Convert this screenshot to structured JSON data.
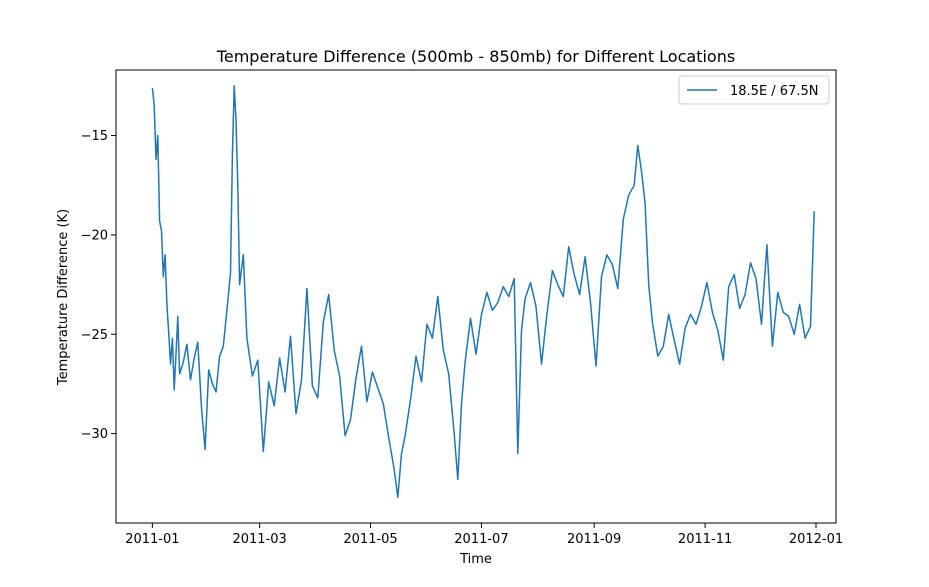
{
  "chart_data": {
    "type": "line",
    "title": "Temperature Difference (500mb - 850mb) for Different Locations",
    "xlabel": "Time",
    "ylabel": "Temperature Difference (K)",
    "xlim": [
      "2010-12-12",
      "2012-01-12"
    ],
    "ylim": [
      -34.5,
      -11.7
    ],
    "x_ticks": [
      "2011-01",
      "2011-03",
      "2011-05",
      "2011-07",
      "2011-09",
      "2011-11",
      "2012-01"
    ],
    "y_ticks": [
      -30,
      -25,
      -20,
      -15
    ],
    "y_tick_labels": [
      "−30",
      "−25",
      "−20",
      "−15"
    ],
    "grid": false,
    "legend_position": "top-right",
    "series": [
      {
        "name": "18.5E / 67.5N",
        "color": "#1f77b4",
        "x": [
          "2011-01-01",
          "2011-01-02",
          "2011-01-03",
          "2011-01-04",
          "2011-01-05",
          "2011-01-06",
          "2011-01-07",
          "2011-01-08",
          "2011-01-09",
          "2011-01-10",
          "2011-01-11",
          "2011-01-12",
          "2011-01-13",
          "2011-01-14",
          "2011-01-15",
          "2011-01-16",
          "2011-01-18",
          "2011-01-20",
          "2011-01-22",
          "2011-01-24",
          "2011-01-26",
          "2011-01-28",
          "2011-01-30",
          "2011-02-01",
          "2011-02-03",
          "2011-02-05",
          "2011-02-07",
          "2011-02-09",
          "2011-02-11",
          "2011-02-13",
          "2011-02-14",
          "2011-02-15",
          "2011-02-16",
          "2011-02-17",
          "2011-02-18",
          "2011-02-20",
          "2011-02-22",
          "2011-02-25",
          "2011-02-28",
          "2011-03-03",
          "2011-03-06",
          "2011-03-09",
          "2011-03-12",
          "2011-03-15",
          "2011-03-18",
          "2011-03-21",
          "2011-03-24",
          "2011-03-27",
          "2011-03-30",
          "2011-04-02",
          "2011-04-05",
          "2011-04-08",
          "2011-04-11",
          "2011-04-14",
          "2011-04-17",
          "2011-04-20",
          "2011-04-23",
          "2011-04-26",
          "2011-04-29",
          "2011-05-02",
          "2011-05-05",
          "2011-05-08",
          "2011-05-11",
          "2011-05-14",
          "2011-05-16",
          "2011-05-18",
          "2011-05-20",
          "2011-05-23",
          "2011-05-26",
          "2011-05-29",
          "2011-06-01",
          "2011-06-04",
          "2011-06-07",
          "2011-06-10",
          "2011-06-13",
          "2011-06-16",
          "2011-06-18",
          "2011-06-20",
          "2011-06-22",
          "2011-06-25",
          "2011-06-28",
          "2011-07-01",
          "2011-07-04",
          "2011-07-07",
          "2011-07-10",
          "2011-07-13",
          "2011-07-16",
          "2011-07-19",
          "2011-07-21",
          "2011-07-23",
          "2011-07-25",
          "2011-07-28",
          "2011-07-31",
          "2011-08-03",
          "2011-08-06",
          "2011-08-09",
          "2011-08-12",
          "2011-08-15",
          "2011-08-18",
          "2011-08-21",
          "2011-08-24",
          "2011-08-27",
          "2011-08-30",
          "2011-09-02",
          "2011-09-05",
          "2011-09-08",
          "2011-09-11",
          "2011-09-14",
          "2011-09-17",
          "2011-09-20",
          "2011-09-23",
          "2011-09-25",
          "2011-09-27",
          "2011-09-29",
          "2011-10-01",
          "2011-10-03",
          "2011-10-06",
          "2011-10-09",
          "2011-10-12",
          "2011-10-15",
          "2011-10-18",
          "2011-10-21",
          "2011-10-24",
          "2011-10-27",
          "2011-10-30",
          "2011-11-02",
          "2011-11-05",
          "2011-11-08",
          "2011-11-11",
          "2011-11-14",
          "2011-11-17",
          "2011-11-20",
          "2011-11-23",
          "2011-11-26",
          "2011-11-29",
          "2011-12-02",
          "2011-12-05",
          "2011-12-08",
          "2011-12-11",
          "2011-12-14",
          "2011-12-17",
          "2011-12-20",
          "2011-12-23",
          "2011-12-26",
          "2011-12-29",
          "2011-12-31"
        ],
        "values": [
          -12.6,
          -13.5,
          -16.2,
          -15.0,
          -19.3,
          -19.8,
          -22.1,
          -21.0,
          -23.5,
          -24.9,
          -26.5,
          -25.2,
          -27.8,
          -26.0,
          -24.1,
          -27.0,
          -26.4,
          -25.5,
          -27.3,
          -26.2,
          -25.4,
          -28.7,
          -30.8,
          -26.8,
          -27.5,
          -27.9,
          -26.1,
          -25.6,
          -23.8,
          -21.9,
          -16.0,
          -12.5,
          -14.2,
          -17.5,
          -22.5,
          -21.0,
          -25.2,
          -27.1,
          -26.3,
          -30.9,
          -27.4,
          -28.6,
          -26.2,
          -27.9,
          -25.1,
          -29.0,
          -27.3,
          -22.7,
          -27.6,
          -28.2,
          -24.4,
          -23.0,
          -25.8,
          -27.1,
          -30.1,
          -29.3,
          -27.2,
          -25.6,
          -28.4,
          -26.9,
          -27.7,
          -28.5,
          -30.2,
          -31.8,
          -33.2,
          -31.0,
          -30.1,
          -28.3,
          -26.1,
          -27.4,
          -24.5,
          -25.2,
          -23.1,
          -25.8,
          -27.0,
          -30.0,
          -32.3,
          -28.5,
          -26.4,
          -24.2,
          -26.0,
          -24.0,
          -22.9,
          -23.8,
          -23.4,
          -22.6,
          -23.1,
          -22.2,
          -31.0,
          -24.8,
          -23.2,
          -22.4,
          -23.6,
          -26.5,
          -24.0,
          -21.8,
          -22.5,
          -23.1,
          -20.6,
          -22.0,
          -23.0,
          -21.1,
          -23.4,
          -26.6,
          -22.1,
          -21.0,
          -21.5,
          -22.7,
          -19.2,
          -18.0,
          -17.5,
          -15.5,
          -16.8,
          -18.4,
          -22.5,
          -24.4,
          -26.1,
          -25.6,
          -24.0,
          -25.3,
          -26.5,
          -24.7,
          -24.0,
          -24.5,
          -23.6,
          -22.4,
          -23.9,
          -24.8,
          -26.3,
          -22.6,
          -22.0,
          -23.7,
          -23.0,
          -21.4,
          -22.2,
          -24.5,
          -20.5,
          -25.6,
          -22.9,
          -23.9,
          -24.1,
          -25.0,
          -23.5,
          -25.2,
          -24.6,
          -18.8
        ]
      }
    ]
  }
}
